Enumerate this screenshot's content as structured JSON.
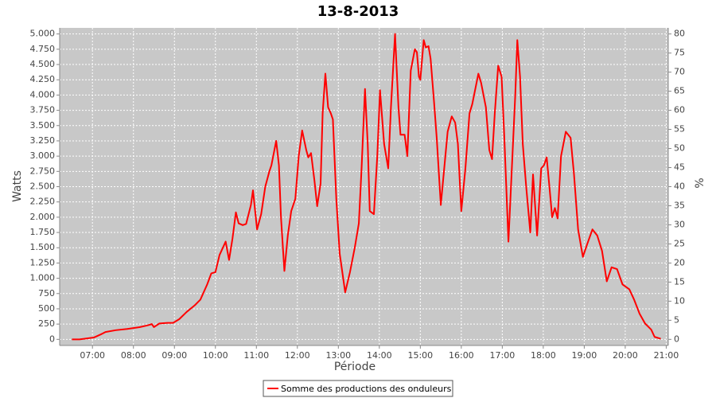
{
  "chart_data": {
    "type": "line",
    "title": "13-8-2013",
    "x_label": "Période",
    "y_label": "Watts",
    "y2_label": "%",
    "xlim": [
      "06:12",
      "21:03"
    ],
    "xticks": [
      "07:00",
      "08:00",
      "09:00",
      "10:00",
      "11:00",
      "12:00",
      "13:00",
      "14:00",
      "15:00",
      "16:00",
      "17:00",
      "18:00",
      "19:00",
      "20:00",
      "21:00"
    ],
    "ylim": [
      -100,
      5100
    ],
    "yticks": [
      0,
      250,
      500,
      750,
      {
        "value": 1000,
        "label": "1.000"
      },
      {
        "value": 1250,
        "label": "1.250"
      },
      {
        "value": 1500,
        "label": "1.500"
      },
      {
        "value": 1750,
        "label": "1.750"
      },
      {
        "value": 2000,
        "label": "2.000"
      },
      {
        "value": 2250,
        "label": "2.250"
      },
      {
        "value": 2500,
        "label": "2.500"
      },
      {
        "value": 2750,
        "label": "2.750"
      },
      {
        "value": 3000,
        "label": "3.000"
      },
      {
        "value": 3250,
        "label": "3.250"
      },
      {
        "value": 3500,
        "label": "3.500"
      },
      {
        "value": 3750,
        "label": "3.750"
      },
      {
        "value": 4000,
        "label": "4.000"
      },
      {
        "value": 4250,
        "label": "4.250"
      },
      {
        "value": 4500,
        "label": "4.500"
      },
      {
        "value": 4750,
        "label": "4.750"
      },
      {
        "value": 5000,
        "label": "5.000"
      }
    ],
    "y2lim": [
      -1.6,
      81.6
    ],
    "y2ticks": [
      0,
      5,
      10,
      15,
      20,
      25,
      30,
      35,
      40,
      45,
      50,
      55,
      60,
      65,
      70,
      75,
      80
    ],
    "grid": true,
    "legend": "bottom",
    "x": [
      "06:30",
      "06:41",
      "07:02",
      "07:12",
      "07:19",
      "07:34",
      "07:51",
      "08:09",
      "08:21",
      "08:27",
      "08:30",
      "08:38",
      "08:50",
      "08:58",
      "09:07",
      "09:18",
      "09:30",
      "09:38",
      "09:48",
      "09:54",
      "10:00",
      "10:06",
      "10:15",
      "10:20",
      "10:25",
      "10:30",
      "10:34",
      "10:40",
      "10:45",
      "10:52",
      "10:55",
      "11:01",
      "11:07",
      "11:13",
      "11:19",
      "11:22",
      "11:29",
      "11:33",
      "11:36",
      "11:41",
      "11:46",
      "11:51",
      "11:57",
      "12:02",
      "12:07",
      "12:13",
      "12:16",
      "12:20",
      "12:25",
      "12:29",
      "12:34",
      "12:37",
      "12:41",
      "12:45",
      "12:49",
      "12:52",
      "12:57",
      "13:02",
      "13:10",
      "13:17",
      "13:24",
      "13:30",
      "13:34",
      "13:39",
      "13:43",
      "13:46",
      "13:52",
      "13:57",
      "14:01",
      "14:07",
      "14:13",
      "14:17",
      "14:23",
      "14:28",
      "14:31",
      "14:37",
      "14:41",
      "14:46",
      "14:52",
      "14:55",
      "14:58",
      "15:00",
      "15:05",
      "15:08",
      "15:12",
      "15:15",
      "15:20",
      "15:24",
      "15:30",
      "15:35",
      "15:40",
      "15:46",
      "15:51",
      "15:55",
      "16:00",
      "16:06",
      "16:12",
      "16:16",
      "16:25",
      "16:29",
      "16:36",
      "16:41",
      "16:45",
      "16:49",
      "16:54",
      "16:59",
      "17:03",
      "17:09",
      "17:14",
      "17:19",
      "17:22",
      "17:26",
      "17:30",
      "17:35",
      "17:41",
      "17:45",
      "17:51",
      "17:57",
      "18:01",
      "18:05",
      "18:09",
      "18:13",
      "18:17",
      "18:21",
      "18:26",
      "18:33",
      "18:40",
      "18:45",
      "18:51",
      "18:58",
      "19:04",
      "19:12",
      "19:19",
      "19:26",
      "19:33",
      "19:40",
      "19:48",
      "19:56",
      "20:06",
      "20:13",
      "20:21",
      "20:29",
      "20:38",
      "20:43",
      "20:52"
    ],
    "series": [
      {
        "name": "Somme des productions des onduleurs",
        "color": "#ff0000",
        "values": [
          0,
          0,
          30,
          80,
          120,
          150,
          170,
          200,
          230,
          250,
          200,
          260,
          270,
          270,
          330,
          450,
          560,
          650,
          900,
          1080,
          1100,
          1380,
          1600,
          1300,
          1650,
          2080,
          1900,
          1870,
          1890,
          2200,
          2440,
          1800,
          2050,
          2500,
          2750,
          2850,
          3250,
          2850,
          2000,
          1120,
          1700,
          2100,
          2300,
          3000,
          3420,
          3100,
          2980,
          3050,
          2600,
          2180,
          2550,
          3700,
          4350,
          3800,
          3700,
          3600,
          2300,
          1400,
          770,
          1100,
          1500,
          1900,
          2800,
          4100,
          3200,
          2100,
          2050,
          3000,
          4080,
          3200,
          2800,
          3800,
          5000,
          3800,
          3350,
          3350,
          3000,
          4400,
          4750,
          4700,
          4300,
          4250,
          4900,
          4780,
          4800,
          4600,
          3900,
          3300,
          2200,
          2800,
          3400,
          3650,
          3550,
          3200,
          2100,
          2800,
          3700,
          3850,
          4350,
          4200,
          3800,
          3100,
          2950,
          3700,
          4480,
          4300,
          3300,
          1600,
          2800,
          4000,
          4900,
          4300,
          3200,
          2500,
          1750,
          2700,
          1700,
          2800,
          2850,
          2980,
          2500,
          2000,
          2150,
          1980,
          3000,
          3400,
          3300,
          2700,
          1800,
          1350,
          1550,
          1800,
          1700,
          1450,
          950,
          1180,
          1150,
          900,
          820,
          650,
          420,
          260,
          160,
          40,
          10
        ]
      }
    ]
  }
}
